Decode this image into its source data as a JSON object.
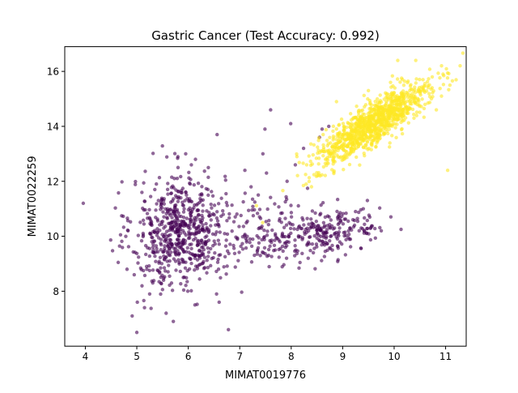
{
  "chart_data": {
    "type": "scatter",
    "title": "Gastric Cancer  (Test Accuracy: 0.992)",
    "xlabel": "MIMAT0019776",
    "ylabel": "MIMAT0022259",
    "xlim": [
      3.6,
      11.4
    ],
    "ylim": [
      6.0,
      16.9
    ],
    "xticks": [
      4,
      5,
      6,
      7,
      8,
      9,
      10,
      11
    ],
    "yticks": [
      8,
      10,
      12,
      14,
      16
    ],
    "grid": false,
    "legend": "none",
    "point_alpha": 0.6,
    "series": [
      {
        "color": "#440154",
        "clusters": [
          {
            "cx": 5.8,
            "cy": 10.2,
            "sx": 0.45,
            "sy": 1.05,
            "rho": 0.1,
            "n": 560
          },
          {
            "cx": 7.2,
            "cy": 10.1,
            "sx": 0.8,
            "sy": 0.65,
            "rho": 0.0,
            "n": 220
          },
          {
            "cx": 8.7,
            "cy": 10.2,
            "sx": 0.55,
            "sy": 0.4,
            "rho": 0.1,
            "n": 200
          }
        ],
        "points": [
          [
            3.96,
            11.2
          ],
          [
            4.83,
            10.2
          ],
          [
            4.81,
            8.8
          ],
          [
            4.91,
            7.1
          ],
          [
            5.0,
            6.5
          ],
          [
            5.01,
            7.6
          ],
          [
            5.25,
            7.9
          ],
          [
            6.56,
            13.7
          ],
          [
            6.78,
            6.6
          ],
          [
            6.55,
            7.9
          ],
          [
            6.6,
            7.6
          ],
          [
            7.6,
            14.6
          ],
          [
            7.99,
            14.1
          ],
          [
            8.08,
            12.6
          ],
          [
            8.24,
            13.2
          ],
          [
            8.55,
            13.6
          ],
          [
            8.6,
            13.9
          ],
          [
            8.73,
            14.0
          ],
          [
            7.45,
            13.0
          ],
          [
            7.52,
            12.3
          ],
          [
            7.22,
            11.8
          ],
          [
            7.36,
            11.5
          ],
          [
            7.92,
            12.0
          ],
          [
            7.1,
            12.4
          ],
          [
            7.49,
            13.9
          ],
          [
            9.25,
            10.9
          ],
          [
            9.2,
            10.6
          ],
          [
            9.4,
            11.0
          ],
          [
            9.48,
            11.3
          ],
          [
            9.23,
            10.4
          ],
          [
            9.36,
            10.3
          ],
          [
            9.75,
            10.2
          ],
          [
            9.32,
            10.2
          ],
          [
            8.94,
            10.3
          ],
          [
            7.2,
            9.9
          ],
          [
            7.4,
            9.3
          ],
          [
            6.13,
            7.5
          ],
          [
            5.31,
            8.3
          ],
          [
            5.57,
            7.2
          ],
          [
            5.52,
            8.4
          ],
          [
            5.71,
            6.9
          ],
          [
            5.15,
            7.4
          ],
          [
            6.25,
            11.3
          ],
          [
            6.39,
            12.5
          ],
          [
            6.06,
            12.6
          ],
          [
            5.73,
            12.1
          ],
          [
            5.95,
            13.0
          ],
          [
            6.14,
            12.8
          ],
          [
            5.35,
            11.7
          ],
          [
            5.42,
            11.3
          ],
          [
            4.95,
            8.6
          ],
          [
            5.19,
            8.9
          ],
          [
            5.32,
            9.5
          ],
          [
            5.64,
            9.1
          ],
          [
            8.43,
            9.4
          ],
          [
            8.61,
            9.8
          ],
          [
            8.8,
            9.5
          ],
          [
            8.33,
            9.2
          ],
          [
            7.91,
            9.2
          ],
          [
            8.09,
            9.5
          ]
        ]
      },
      {
        "color": "#fde725",
        "clusters": [
          {
            "cx": 9.6,
            "cy": 14.1,
            "sx": 0.55,
            "sy": 0.75,
            "rho": 0.85,
            "n": 1100
          }
        ],
        "points": [
          [
            10.42,
            16.4
          ],
          [
            10.07,
            16.4
          ],
          [
            10.74,
            15.8
          ],
          [
            10.95,
            15.9
          ],
          [
            11.04,
            12.4
          ],
          [
            8.88,
            14.9
          ],
          [
            8.3,
            12.6
          ],
          [
            8.29,
            11.9
          ],
          [
            8.62,
            13.7
          ],
          [
            10.92,
            15.1
          ],
          [
            10.82,
            14.6
          ],
          [
            10.6,
            14.8
          ],
          [
            9.93,
            15.6
          ],
          [
            9.5,
            15.3
          ]
        ]
      }
    ]
  }
}
